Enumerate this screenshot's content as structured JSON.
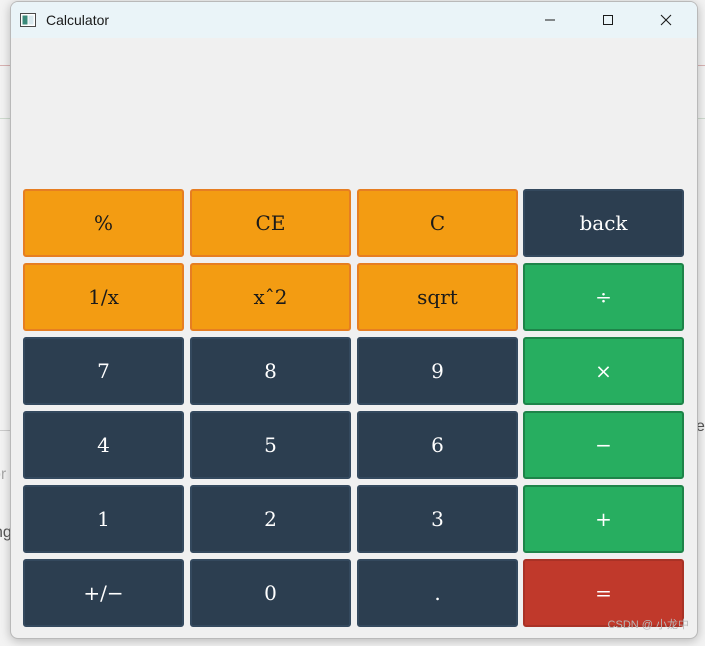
{
  "window": {
    "title": "Calculator"
  },
  "display": {
    "value": ""
  },
  "keys": {
    "percent": "%",
    "ce": "CE",
    "clear": "C",
    "back": "back",
    "reciprocal": "1/x",
    "square": "xˆ2",
    "sqrt": "sqrt",
    "divide": "÷",
    "seven": "7",
    "eight": "8",
    "nine": "9",
    "multiply": "×",
    "four": "4",
    "five": "5",
    "six": "6",
    "minus": "−",
    "one": "1",
    "two": "2",
    "three": "3",
    "plus": "+",
    "negate": "+/−",
    "zero": "0",
    "decimal": ".",
    "equals": "="
  },
  "background": {
    "peek_right": "ex",
    "peek_left_top": "or",
    "peek_left_bottom": "ng"
  },
  "watermark": "CSDN @ 小龙中",
  "colors": {
    "function_key": "#f39c12",
    "digit_key": "#2c3e50",
    "operator_key": "#27ae60",
    "equals_key": "#c0392b",
    "titlebar": "#eaf4f8"
  },
  "icons": {
    "app": "calculator-app-icon",
    "minimize": "minimize-icon",
    "maximize": "maximize-icon",
    "close": "close-icon"
  }
}
